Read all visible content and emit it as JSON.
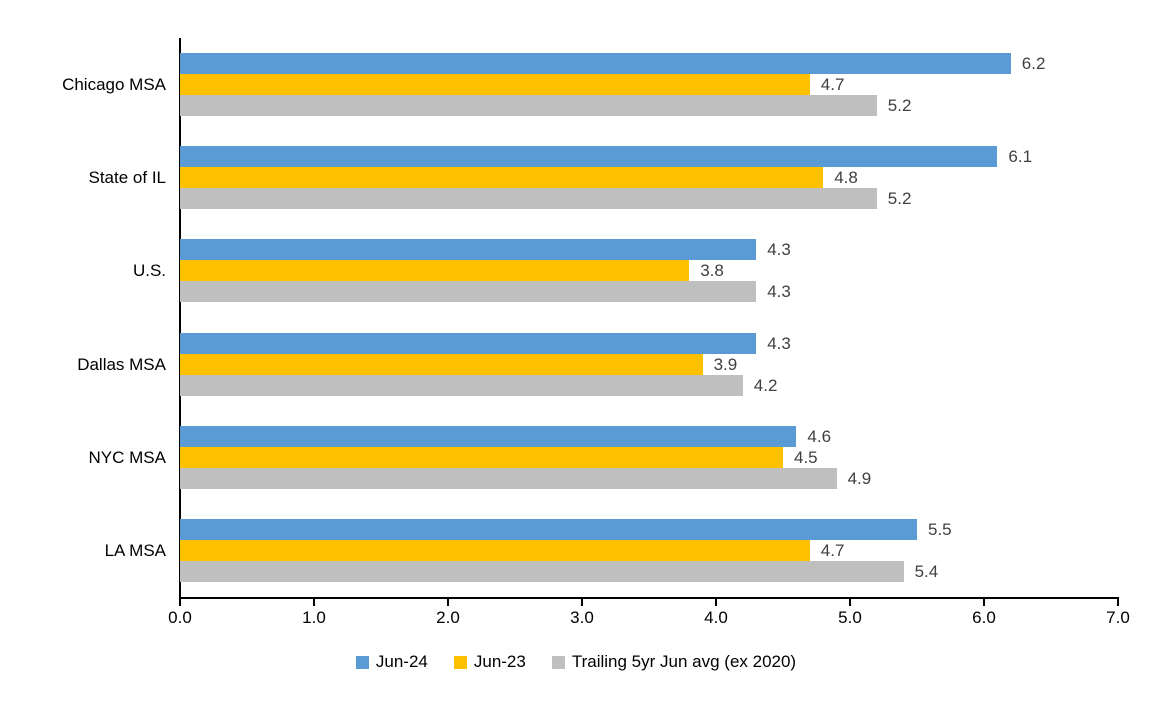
{
  "chart_data": {
    "type": "bar",
    "orientation": "horizontal",
    "title": "",
    "xlabel": "",
    "ylabel": "",
    "grid": false,
    "legend_position": "bottom",
    "xlim": [
      0,
      7
    ],
    "x_ticks": [
      "0.0",
      "1.0",
      "2.0",
      "3.0",
      "4.0",
      "5.0",
      "6.0",
      "7.0"
    ],
    "categories": [
      "Chicago MSA",
      "State of IL",
      "U.S.",
      "Dallas MSA",
      "NYC MSA",
      "LA MSA"
    ],
    "series": [
      {
        "name": "Jun-24",
        "color": "#5B9BD5",
        "values": [
          6.2,
          6.1,
          4.3,
          4.3,
          4.6,
          5.5
        ]
      },
      {
        "name": "Jun-23",
        "color": "#FFC000",
        "values": [
          4.7,
          4.8,
          3.8,
          3.9,
          4.5,
          4.7
        ]
      },
      {
        "name": "Trailing 5yr Jun avg (ex 2020)",
        "color": "#BFBFBF",
        "values": [
          5.2,
          5.2,
          4.3,
          4.2,
          4.9,
          5.4
        ]
      }
    ],
    "colors": {
      "value_label": "#404040",
      "axis": "#000000",
      "text": "#000000",
      "background": "#FFFFFF"
    }
  }
}
